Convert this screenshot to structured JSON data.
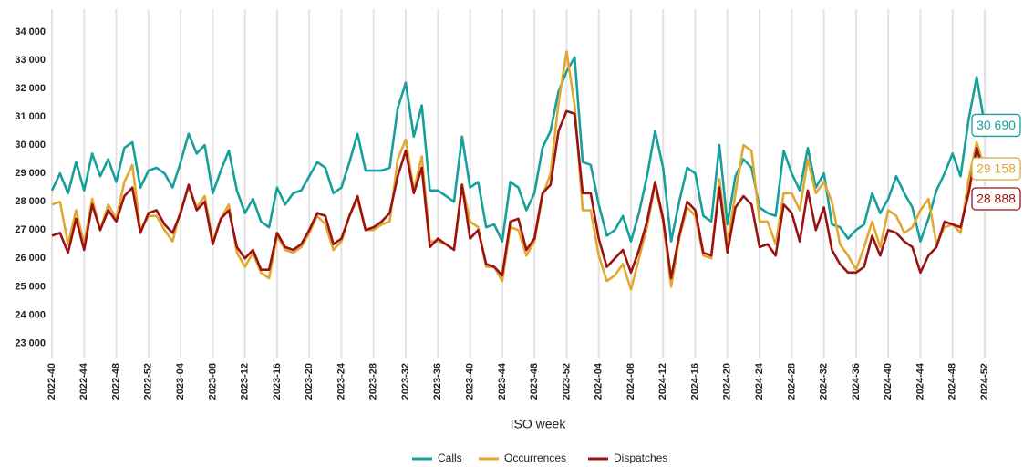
{
  "chart_data": {
    "type": "line",
    "xlabel": "ISO week",
    "categories": [
      "2022-40",
      null,
      null,
      null,
      "2022-44",
      null,
      null,
      null,
      "2022-48",
      null,
      null,
      null,
      "2022-52",
      null,
      null,
      null,
      "2023-04",
      null,
      null,
      null,
      "2023-08",
      null,
      null,
      null,
      "2023-12",
      null,
      null,
      null,
      "2023-16",
      null,
      null,
      null,
      "2023-20",
      null,
      null,
      null,
      "2023-24",
      null,
      null,
      null,
      "2023-28",
      null,
      null,
      null,
      "2023-32",
      null,
      null,
      null,
      "2023-36",
      null,
      null,
      null,
      "2023-40",
      null,
      null,
      null,
      "2023-44",
      null,
      null,
      null,
      "2023-48",
      null,
      null,
      null,
      "2023-52",
      null,
      null,
      null,
      "2024-04",
      null,
      null,
      null,
      "2024-08",
      null,
      null,
      null,
      "2024-12",
      null,
      null,
      null,
      "2024-16",
      null,
      null,
      null,
      "2024-20",
      null,
      null,
      null,
      "2024-24",
      null,
      null,
      null,
      "2024-28",
      null,
      null,
      null,
      "2024-32",
      null,
      null,
      null,
      "2024-36",
      null,
      null,
      null,
      "2024-40",
      null,
      null,
      null,
      "2024-44",
      null,
      null,
      null,
      "2024-48",
      null,
      null,
      null,
      "2024-52"
    ],
    "series": [
      {
        "name": "Calls",
        "color": "#17a09b",
        "values": [
          28400,
          29000,
          28300,
          29400,
          28400,
          29700,
          28900,
          29500,
          28700,
          29900,
          30100,
          28500,
          29100,
          29200,
          29000,
          28500,
          29400,
          30400,
          29700,
          30000,
          28300,
          29100,
          29800,
          28400,
          27600,
          28100,
          27300,
          27100,
          28500,
          27900,
          28300,
          28400,
          28900,
          29400,
          29200,
          28300,
          28500,
          29400,
          30400,
          29100,
          29100,
          29100,
          29200,
          31300,
          32200,
          30300,
          31400,
          28400,
          28400,
          28200,
          28000,
          30300,
          28500,
          28700,
          27100,
          27200,
          26600,
          28700,
          28500,
          27700,
          28300,
          29900,
          30500,
          31900,
          32600,
          33100,
          29400,
          29300,
          27900,
          26800,
          27000,
          27500,
          26600,
          27600,
          28900,
          30500,
          29200,
          26600,
          28000,
          29200,
          29000,
          27500,
          27300,
          30000,
          27200,
          28900,
          29500,
          29200,
          27800,
          27600,
          27500,
          29800,
          29000,
          28400,
          29900,
          28500,
          29000,
          27200,
          27100,
          26700,
          27000,
          27200,
          28300,
          27600,
          28100,
          28900,
          28300,
          27800,
          26600,
          27400,
          28400,
          29000,
          29700,
          28900,
          30900,
          32400,
          30690
        ],
        "value_labels": [
          null,
          null,
          null,
          null,
          null,
          null,
          null,
          null,
          null,
          null,
          null,
          null,
          null,
          null,
          null,
          null,
          null,
          null,
          null,
          null,
          null,
          null,
          null,
          null,
          null,
          null,
          null,
          null,
          null,
          null,
          null,
          null,
          null,
          null,
          null,
          null,
          null,
          null,
          null,
          null,
          null,
          null,
          null,
          null,
          null,
          null,
          null,
          null,
          null,
          null,
          null,
          null,
          null,
          null,
          null,
          null,
          null,
          null,
          null,
          null,
          null,
          null,
          null,
          null,
          null,
          null,
          null,
          null,
          null,
          null,
          null,
          null,
          null,
          null,
          null,
          null,
          null,
          null,
          null,
          null,
          null,
          null,
          null,
          null,
          null,
          null,
          null,
          null,
          null,
          null,
          null,
          null,
          null,
          null,
          null,
          null,
          null,
          null,
          null,
          null,
          null,
          null,
          null,
          null,
          null,
          null,
          null,
          null,
          null,
          null,
          null,
          null,
          null,
          null,
          null,
          null,
          "30 690"
        ]
      },
      {
        "name": "Occurrences",
        "color": "#e0a830",
        "values": [
          27900,
          28000,
          26500,
          27700,
          26500,
          28100,
          27000,
          27900,
          27400,
          28700,
          29300,
          27000,
          27500,
          27500,
          27000,
          26600,
          27700,
          28500,
          27800,
          28200,
          26600,
          27400,
          27900,
          26200,
          25700,
          26200,
          25500,
          25300,
          26800,
          26300,
          26200,
          26400,
          26900,
          27500,
          27200,
          26300,
          26600,
          27500,
          28100,
          27000,
          27000,
          27200,
          27300,
          29500,
          30200,
          28400,
          29600,
          26600,
          26600,
          26500,
          26300,
          28600,
          27300,
          27100,
          25700,
          25700,
          25200,
          27100,
          27000,
          26100,
          26600,
          28200,
          29000,
          31500,
          33300,
          31400,
          27700,
          27700,
          26100,
          25200,
          25400,
          25800,
          24900,
          26000,
          27100,
          28600,
          27300,
          25000,
          26700,
          27800,
          27500,
          26100,
          26000,
          28800,
          26500,
          28300,
          30000,
          29800,
          27300,
          27300,
          26500,
          28300,
          28300,
          27700,
          29500,
          28300,
          28700,
          28000,
          26500,
          26100,
          25600,
          26400,
          27300,
          26400,
          27700,
          27500,
          26900,
          27100,
          27700,
          28100,
          26500,
          27100,
          27200,
          26900,
          28800,
          30100,
          29158
        ],
        "value_labels": [
          null,
          null,
          null,
          null,
          null,
          null,
          null,
          null,
          null,
          null,
          null,
          null,
          null,
          null,
          null,
          null,
          null,
          null,
          null,
          null,
          null,
          null,
          null,
          null,
          null,
          null,
          null,
          null,
          null,
          null,
          null,
          null,
          null,
          null,
          null,
          null,
          null,
          null,
          null,
          null,
          null,
          null,
          null,
          null,
          null,
          null,
          null,
          null,
          null,
          null,
          null,
          null,
          null,
          null,
          null,
          null,
          null,
          null,
          null,
          null,
          null,
          null,
          null,
          null,
          null,
          null,
          null,
          null,
          null,
          null,
          null,
          null,
          null,
          null,
          null,
          null,
          null,
          null,
          null,
          null,
          null,
          null,
          null,
          null,
          null,
          null,
          null,
          null,
          null,
          null,
          null,
          null,
          null,
          null,
          null,
          null,
          null,
          null,
          null,
          null,
          null,
          null,
          null,
          null,
          null,
          null,
          null,
          null,
          null,
          null,
          null,
          null,
          null,
          null,
          null,
          null,
          "29 158"
        ]
      },
      {
        "name": "Dispatches",
        "color": "#9b1212",
        "values": [
          26800,
          26900,
          26200,
          27400,
          26300,
          27900,
          27000,
          27700,
          27300,
          28200,
          28500,
          26900,
          27600,
          27700,
          27200,
          26900,
          27600,
          28600,
          27700,
          28000,
          26500,
          27400,
          27700,
          26400,
          26000,
          26300,
          25600,
          25600,
          26900,
          26400,
          26300,
          26500,
          27000,
          27600,
          27500,
          26500,
          26700,
          27500,
          28200,
          27000,
          27100,
          27300,
          27600,
          28900,
          29800,
          28300,
          29200,
          26400,
          26700,
          26500,
          26300,
          28600,
          26700,
          27000,
          25800,
          25700,
          25400,
          27300,
          27400,
          26300,
          26700,
          28300,
          28600,
          30500,
          31200,
          31100,
          28300,
          28300,
          26700,
          25700,
          26000,
          26300,
          25500,
          26300,
          27300,
          28700,
          27400,
          25300,
          26800,
          28000,
          27700,
          26200,
          26100,
          28500,
          26200,
          27800,
          28200,
          27900,
          26400,
          26500,
          26100,
          27900,
          27600,
          26600,
          28400,
          27000,
          27800,
          26300,
          25800,
          25500,
          25500,
          25700,
          26800,
          26100,
          27000,
          26900,
          26600,
          26400,
          25500,
          26100,
          26400,
          27300,
          27200,
          27100,
          28300,
          29900,
          28888
        ],
        "value_labels": [
          null,
          null,
          null,
          null,
          null,
          null,
          null,
          null,
          null,
          null,
          null,
          null,
          null,
          null,
          null,
          null,
          null,
          null,
          null,
          null,
          null,
          null,
          null,
          null,
          null,
          null,
          null,
          null,
          null,
          null,
          null,
          null,
          null,
          null,
          null,
          null,
          null,
          null,
          null,
          null,
          null,
          null,
          null,
          null,
          null,
          null,
          null,
          null,
          null,
          null,
          null,
          null,
          null,
          null,
          null,
          null,
          null,
          null,
          null,
          null,
          null,
          null,
          null,
          null,
          null,
          null,
          null,
          null,
          null,
          null,
          null,
          null,
          null,
          null,
          null,
          null,
          null,
          null,
          null,
          null,
          null,
          null,
          null,
          null,
          null,
          null,
          null,
          null,
          null,
          null,
          null,
          null,
          null,
          null,
          null,
          null,
          null,
          null,
          null,
          null,
          null,
          null,
          null,
          null,
          null,
          null,
          null,
          null,
          null,
          null,
          null,
          null,
          null,
          null,
          null,
          null,
          "28 888"
        ]
      }
    ],
    "ylim": [
      22500,
      34800
    ],
    "yticks": [
      {
        "value": 23000,
        "label": "23 000"
      },
      {
        "value": 24000,
        "label": "24 000"
      },
      {
        "value": 25000,
        "label": "25 000"
      },
      {
        "value": 26000,
        "label": "26 000"
      },
      {
        "value": 27000,
        "label": "27 000"
      },
      {
        "value": 28000,
        "label": "28 000"
      },
      {
        "value": 29000,
        "label": "29 000"
      },
      {
        "value": 30000,
        "label": "30 000"
      },
      {
        "value": 31000,
        "label": "31 000"
      },
      {
        "value": 32000,
        "label": "32 000"
      },
      {
        "value": 33000,
        "label": "33 000"
      },
      {
        "value": 34000,
        "label": "34 000"
      }
    ],
    "grid": "x",
    "legend": "bottom"
  }
}
